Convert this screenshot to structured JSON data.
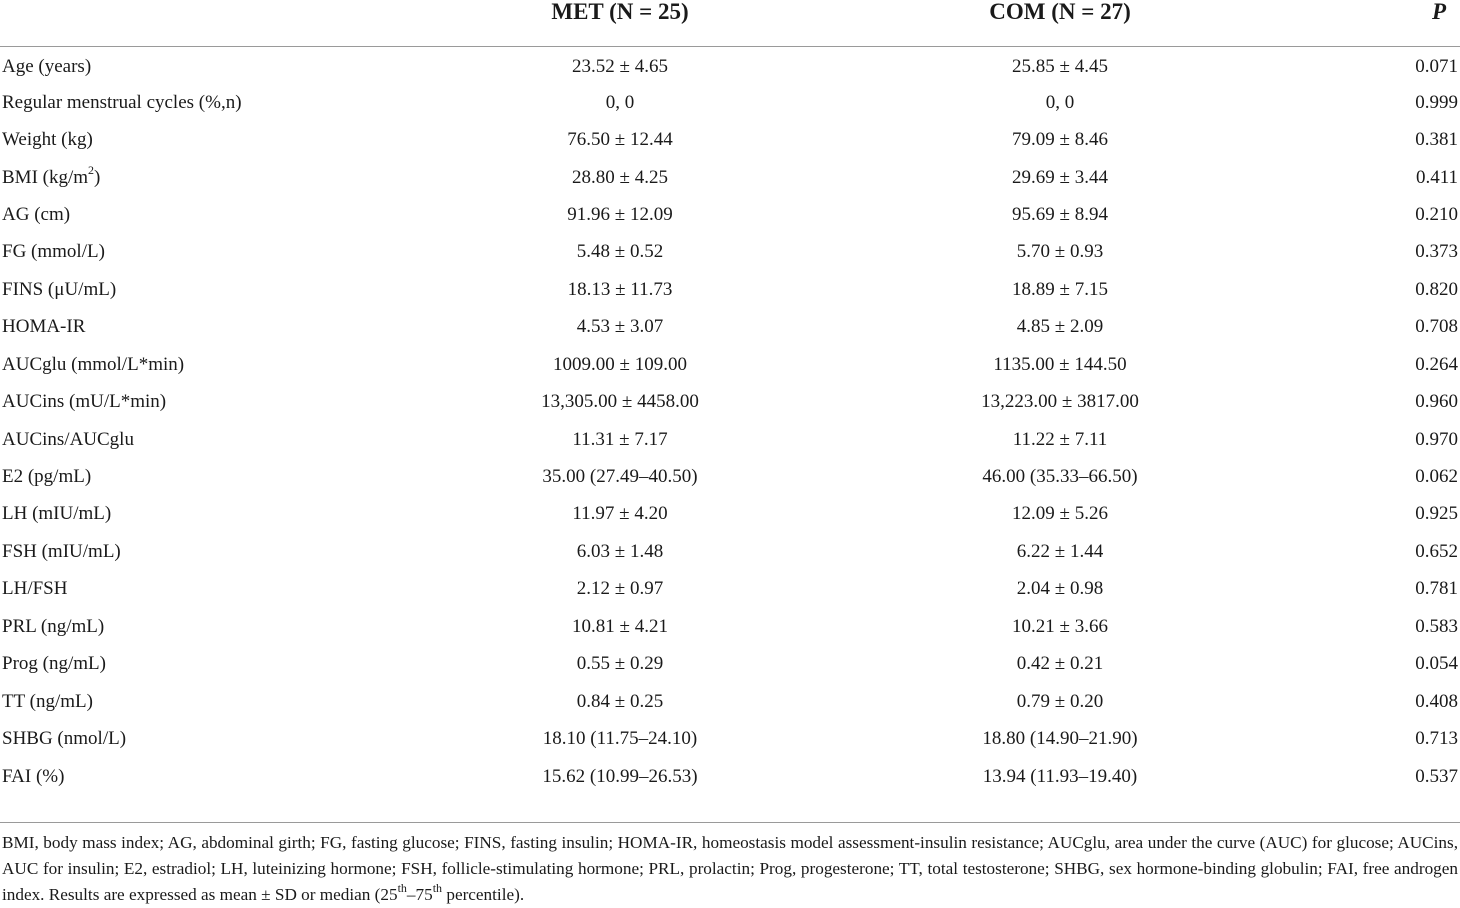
{
  "table": {
    "headers": {
      "label": "",
      "met": "MET (N = 25)",
      "com": "COM (N = 27)",
      "p": "P"
    },
    "rows": [
      {
        "label": "Age (years)",
        "met": "23.52 ± 4.65",
        "com": "25.85 ± 4.45",
        "p": "0.071"
      },
      {
        "label": "Regular menstrual cycles (%,n)",
        "met": "0, 0",
        "com": "0, 0",
        "p": "0.999"
      },
      {
        "label": "Weight (kg)",
        "met": "76.50 ± 12.44",
        "com": "79.09 ± 8.46",
        "p": "0.381"
      },
      {
        "label": "BMI (kg/m",
        "label_sup": "2",
        "label_after": ")",
        "met": "28.80 ± 4.25",
        "com": "29.69 ± 3.44",
        "p": "0.411"
      },
      {
        "label": "AG (cm)",
        "met": "91.96 ± 12.09",
        "com": "95.69 ± 8.94",
        "p": "0.210"
      },
      {
        "label": "FG (mmol/L)",
        "met": "5.48 ± 0.52",
        "com": "5.70 ± 0.93",
        "p": "0.373"
      },
      {
        "label": "FINS (μU/mL)",
        "met": "18.13 ± 11.73",
        "com": "18.89 ± 7.15",
        "p": "0.820"
      },
      {
        "label": "HOMA-IR",
        "met": "4.53 ± 3.07",
        "com": "4.85 ± 2.09",
        "p": "0.708"
      },
      {
        "label": "AUCglu (mmol/L*min)",
        "met": "1009.00 ± 109.00",
        "com": "1135.00 ± 144.50",
        "p": "0.264"
      },
      {
        "label": "AUCins (mU/L*min)",
        "met": "13,305.00 ± 4458.00",
        "com": "13,223.00 ± 3817.00",
        "p": "0.960"
      },
      {
        "label": "AUCins/AUCglu",
        "met": "11.31 ± 7.17",
        "com": "11.22 ± 7.11",
        "p": "0.970"
      },
      {
        "label": "E2 (pg/mL)",
        "met": "35.00 (27.49–40.50)",
        "com": "46.00 (35.33–66.50)",
        "p": "0.062"
      },
      {
        "label": "LH (mIU/mL)",
        "met": "11.97 ± 4.20",
        "com": "12.09 ± 5.26",
        "p": "0.925"
      },
      {
        "label": "FSH (mIU/mL)",
        "met": "6.03 ± 1.48",
        "com": "6.22 ± 1.44",
        "p": "0.652"
      },
      {
        "label": "LH/FSH",
        "met": "2.12 ± 0.97",
        "com": "2.04 ± 0.98",
        "p": "0.781"
      },
      {
        "label": "PRL (ng/mL)",
        "met": "10.81 ± 4.21",
        "com": "10.21 ± 3.66",
        "p": "0.583"
      },
      {
        "label": "Prog (ng/mL)",
        "met": "0.55 ± 0.29",
        "com": "0.42 ± 0.21",
        "p": "0.054"
      },
      {
        "label": "TT (ng/mL)",
        "met": "0.84 ± 0.25",
        "com": "0.79 ± 0.20",
        "p": "0.408"
      },
      {
        "label": "SHBG (nmol/L)",
        "met": "18.10 (11.75–24.10)",
        "com": "18.80 (14.90–21.90)",
        "p": "0.713"
      },
      {
        "label": "FAI (%)",
        "met": "15.62 (10.99–26.53)",
        "com": "13.94 (11.93–19.40)",
        "p": "0.537"
      }
    ]
  },
  "footnote": {
    "text_1": "BMI, body mass index; AG, abdominal girth; FG, fasting glucose; FINS, fasting insulin; HOMA-IR, homeostasis model assessment-insulin resistance; AUCglu, area under the curve (AUC) for glucose; AUCins, AUC for insulin; E2, estradiol; LH, luteinizing hormone; FSH, follicle-stimulating hormone; PRL, prolactin; Prog, progesterone; TT, total testosterone; SHBG, sex hormone-binding globulin; FAI, free androgen index. Results are expressed as mean ± SD or median (25",
    "sup_1": "th",
    "text_2": "–75",
    "sup_2": "th",
    "text_3": " percentile)."
  }
}
